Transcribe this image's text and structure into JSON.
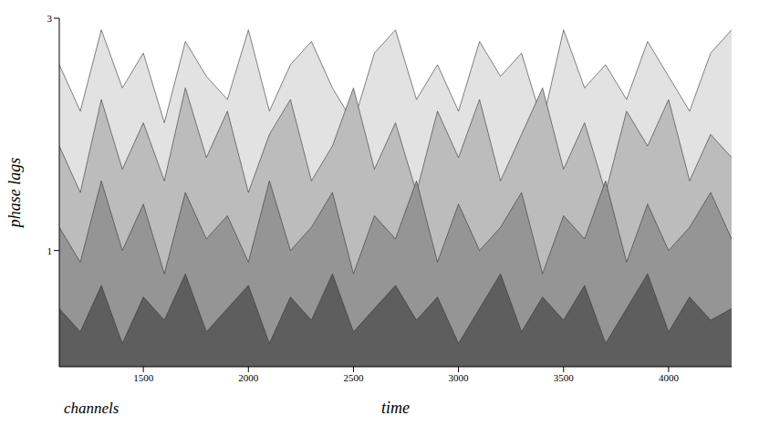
{
  "chart_data": {
    "type": "area",
    "xlabel": "time",
    "ylabel": "phase lags",
    "zlabel": "channels",
    "x": [
      1100,
      1200,
      1300,
      1400,
      1500,
      1600,
      1700,
      1800,
      1900,
      2000,
      2100,
      2200,
      2300,
      2400,
      2500,
      2600,
      2700,
      2800,
      2900,
      3000,
      3100,
      3200,
      3300,
      3400,
      3500,
      3600,
      3700,
      3800,
      3900,
      4000,
      4100,
      4200,
      4300
    ],
    "series": [
      {
        "color": "#e2e2e2",
        "values": [
          2.6,
          2.2,
          2.9,
          2.4,
          2.7,
          2.1,
          2.8,
          2.5,
          2.3,
          2.9,
          2.2,
          2.6,
          2.8,
          2.4,
          2.1,
          2.7,
          2.9,
          2.3,
          2.6,
          2.2,
          2.8,
          2.5,
          2.7,
          2.1,
          2.9,
          2.4,
          2.6,
          2.3,
          2.8,
          2.5,
          2.2,
          2.7,
          2.9
        ]
      },
      {
        "color": "#bcbcbc",
        "values": [
          1.9,
          1.5,
          2.3,
          1.7,
          2.1,
          1.6,
          2.4,
          1.8,
          2.2,
          1.5,
          2.0,
          2.3,
          1.6,
          1.9,
          2.4,
          1.7,
          2.1,
          1.5,
          2.2,
          1.8,
          2.3,
          1.6,
          2.0,
          2.4,
          1.7,
          2.1,
          1.5,
          2.2,
          1.9,
          2.3,
          1.6,
          2.0,
          1.8
        ]
      },
      {
        "color": "#959595",
        "values": [
          1.2,
          0.9,
          1.6,
          1.0,
          1.4,
          0.8,
          1.5,
          1.1,
          1.3,
          0.9,
          1.6,
          1.0,
          1.2,
          1.5,
          0.8,
          1.3,
          1.1,
          1.6,
          0.9,
          1.4,
          1.0,
          1.2,
          1.5,
          0.8,
          1.3,
          1.1,
          1.6,
          0.9,
          1.4,
          1.0,
          1.2,
          1.5,
          1.1
        ]
      },
      {
        "color": "#5e5e5e",
        "values": [
          0.5,
          0.3,
          0.7,
          0.2,
          0.6,
          0.4,
          0.8,
          0.3,
          0.5,
          0.7,
          0.2,
          0.6,
          0.4,
          0.8,
          0.3,
          0.5,
          0.7,
          0.4,
          0.6,
          0.2,
          0.5,
          0.8,
          0.3,
          0.6,
          0.4,
          0.7,
          0.2,
          0.5,
          0.8,
          0.3,
          0.6,
          0.4,
          0.5
        ]
      }
    ],
    "xlim": [
      1100,
      4300
    ],
    "xticks": [
      1500,
      2000,
      2500,
      3000,
      3500,
      4000
    ],
    "ylim": [
      0,
      3
    ],
    "yticks": [
      1,
      3
    ],
    "grid": false
  }
}
